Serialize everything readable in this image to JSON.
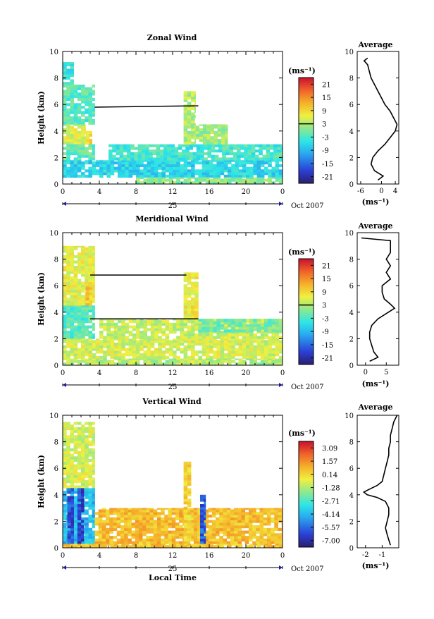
{
  "chart_data": [
    {
      "type": "heatmap",
      "title": "Zonal Wind",
      "ylabel": "Height (km)",
      "xlabel": "",
      "ylim": [
        0,
        10
      ],
      "xlim": [
        0,
        24
      ],
      "x_ticks": [
        "0",
        "4",
        "8",
        "12",
        "16",
        "20",
        "0"
      ],
      "y_ticks": [
        "0",
        "2",
        "4",
        "6",
        "8",
        "10"
      ],
      "day_label": "25",
      "date_label": "Oct 2007",
      "colorbar": {
        "unit": "(ms⁻¹)",
        "labels": [
          "21",
          "15",
          "9",
          "3",
          "-3",
          "-9",
          "-15",
          "-21"
        ],
        "zero_line": 3.5
      },
      "average": {
        "title": "Average",
        "xlabel": "(ms⁻¹)",
        "xlim": [
          -7,
          5
        ],
        "x_ticks": [
          -6,
          0,
          4
        ],
        "height_km": [
          0.3,
          0.6,
          1.0,
          1.5,
          2.0,
          2.5,
          3.0,
          3.5,
          4.0,
          4.5,
          5.0,
          5.5,
          6.0,
          6.5,
          7.0,
          7.5,
          8.0,
          8.5,
          9.0,
          9.3,
          9.5
        ],
        "wind_ms": [
          -1,
          0.5,
          -2,
          -3,
          -2.5,
          -1,
          1,
          2.5,
          4,
          4.5,
          3.5,
          2.5,
          1,
          0,
          -1,
          -2,
          -3,
          -3.5,
          -4,
          -5,
          -4
        ]
      },
      "regions": [
        {
          "x": [
            0,
            3.5
          ],
          "y": [
            4.5,
            7.5
          ],
          "v": -4
        },
        {
          "x": [
            0,
            1.2
          ],
          "y": [
            7.5,
            9.2
          ],
          "v": -6
        },
        {
          "x": [
            0,
            2.5
          ],
          "y": [
            3.0,
            4.5
          ],
          "v": 4
        },
        {
          "x": [
            2.5,
            3.2
          ],
          "y": [
            3.0,
            4.0
          ],
          "v": 7
        },
        {
          "x": [
            0,
            3.5
          ],
          "y": [
            1.8,
            3.0
          ],
          "v": -3
        },
        {
          "x": [
            0,
            24
          ],
          "y": [
            0.5,
            1.8
          ],
          "v": -8
        },
        {
          "x": [
            5,
            24
          ],
          "y": [
            1.8,
            3.0
          ],
          "v": -5
        },
        {
          "x": [
            13.2,
            14.5
          ],
          "y": [
            3.0,
            7.0
          ],
          "v": 2
        },
        {
          "x": [
            14.5,
            18
          ],
          "y": [
            3.0,
            4.5
          ],
          "v": 1
        },
        {
          "x": [
            8,
            24
          ],
          "y": [
            0,
            0.5
          ],
          "v": -1
        }
      ],
      "lines": [
        {
          "x": [
            3.5,
            14.8
          ],
          "y": [
            5.8,
            5.9
          ]
        }
      ]
    },
    {
      "type": "heatmap",
      "title": "Meridional Wind",
      "ylabel": "Height (km)",
      "xlabel": "",
      "ylim": [
        0,
        10
      ],
      "xlim": [
        0,
        24
      ],
      "x_ticks": [
        "0",
        "4",
        "8",
        "12",
        "16",
        "20",
        "0"
      ],
      "y_ticks": [
        "0",
        "2",
        "4",
        "6",
        "8",
        "10"
      ],
      "day_label": "25",
      "date_label": "Oct 2007",
      "colorbar": {
        "unit": "(ms⁻¹)",
        "labels": [
          "21",
          "15",
          "9",
          "3",
          "-3",
          "-9",
          "-15",
          "-21"
        ],
        "zero_line": 3.5
      },
      "average": {
        "title": "Average",
        "xlabel": "(ms⁻¹)",
        "xlim": [
          -2,
          8
        ],
        "x_ticks": [
          0,
          5
        ],
        "height_km": [
          0.3,
          0.6,
          1.0,
          1.5,
          2.0,
          2.5,
          3.0,
          3.5,
          4.0,
          4.3,
          4.6,
          5.0,
          5.5,
          6.0,
          6.5,
          7.0,
          7.5,
          8.0,
          8.5,
          9.0,
          9.4,
          9.6
        ],
        "wind_ms": [
          1,
          3,
          2,
          1.5,
          1,
          1,
          1.5,
          3,
          5.5,
          7,
          6,
          4.5,
          4,
          4,
          6,
          5,
          6,
          5,
          6,
          6,
          6,
          -1
        ]
      },
      "regions": [
        {
          "x": [
            0,
            3.5
          ],
          "y": [
            4.5,
            9.0
          ],
          "v": 5
        },
        {
          "x": [
            2.5,
            3.2
          ],
          "y": [
            4.5,
            6.0
          ],
          "v": 9
        },
        {
          "x": [
            0,
            3.5
          ],
          "y": [
            2.0,
            4.5
          ],
          "v": -4
        },
        {
          "x": [
            0,
            24
          ],
          "y": [
            0.5,
            2.0
          ],
          "v": 4
        },
        {
          "x": [
            4,
            24
          ],
          "y": [
            2.0,
            3.5
          ],
          "v": 3
        },
        {
          "x": [
            13.2,
            14.8
          ],
          "y": [
            3.5,
            7.0
          ],
          "v": 6
        },
        {
          "x": [
            14.8,
            24
          ],
          "y": [
            2.5,
            3.5
          ],
          "v": -2
        },
        {
          "x": [
            0,
            24
          ],
          "y": [
            0,
            0.5
          ],
          "v": 2
        }
      ],
      "lines": [
        {
          "x": [
            3.0,
            13.5
          ],
          "y": [
            6.8,
            6.8
          ]
        },
        {
          "x": [
            3.0,
            14.8
          ],
          "y": [
            3.5,
            3.5
          ]
        }
      ]
    },
    {
      "type": "heatmap",
      "title": "Vertical Wind",
      "ylabel": "Height (km)",
      "xlabel": "Local Time",
      "ylim": [
        0,
        10
      ],
      "xlim": [
        0,
        24
      ],
      "x_ticks": [
        "0",
        "4",
        "8",
        "12",
        "16",
        "20",
        "0"
      ],
      "y_ticks": [
        "0",
        "2",
        "4",
        "6",
        "8",
        "10"
      ],
      "day_label": "25",
      "date_label": "Oct 2007",
      "colorbar": {
        "unit": "(ms⁻¹)",
        "labels": [
          "3.09",
          "1.57",
          "0.14",
          "-1.28",
          "-2.71",
          "-4.14",
          "-5.57",
          "-7.00"
        ]
      },
      "average": {
        "title": "Average",
        "xlabel": "(ms⁻¹)",
        "xlim": [
          -2.5,
          0
        ],
        "x_ticks": [
          -2,
          -1
        ],
        "height_km": [
          0.2,
          0.6,
          1.0,
          1.5,
          2.0,
          2.5,
          3.0,
          3.5,
          3.8,
          4.0,
          4.2,
          4.4,
          4.7,
          5.0,
          5.5,
          6.0,
          6.5,
          7.0,
          7.5,
          8.0,
          8.5,
          9.0,
          9.5,
          10.0
        ],
        "wind_ms": [
          -0.5,
          -0.6,
          -0.7,
          -0.8,
          -0.7,
          -0.6,
          -0.6,
          -0.8,
          -1.3,
          -1.9,
          -2.1,
          -1.8,
          -1.3,
          -1.0,
          -0.9,
          -0.8,
          -0.7,
          -0.6,
          -0.6,
          -0.5,
          -0.5,
          -0.4,
          -0.3,
          -0.1
        ]
      },
      "regions": [
        {
          "x": [
            0,
            3.5
          ],
          "y": [
            4.5,
            9.5
          ],
          "v": -1.0
        },
        {
          "x": [
            0,
            3.5
          ],
          "y": [
            0.3,
            4.5
          ],
          "v": -4.5
        },
        {
          "x": [
            0.5,
            1.2
          ],
          "y": [
            0.3,
            4.5
          ],
          "v": -6.2
        },
        {
          "x": [
            1.6,
            2.3
          ],
          "y": [
            0.3,
            4.5
          ],
          "v": -6.5
        },
        {
          "x": [
            3.5,
            24
          ],
          "y": [
            0.3,
            3.0
          ],
          "v": 0.5
        },
        {
          "x": [
            13.2,
            14.0
          ],
          "y": [
            0.5,
            6.5
          ],
          "v": 0.0
        },
        {
          "x": [
            15.0,
            15.6
          ],
          "y": [
            0.3,
            4.0
          ],
          "v": -6.0
        },
        {
          "x": [
            0,
            24
          ],
          "y": [
            0,
            0.3
          ],
          "v": 0.3
        }
      ],
      "lines": []
    }
  ]
}
